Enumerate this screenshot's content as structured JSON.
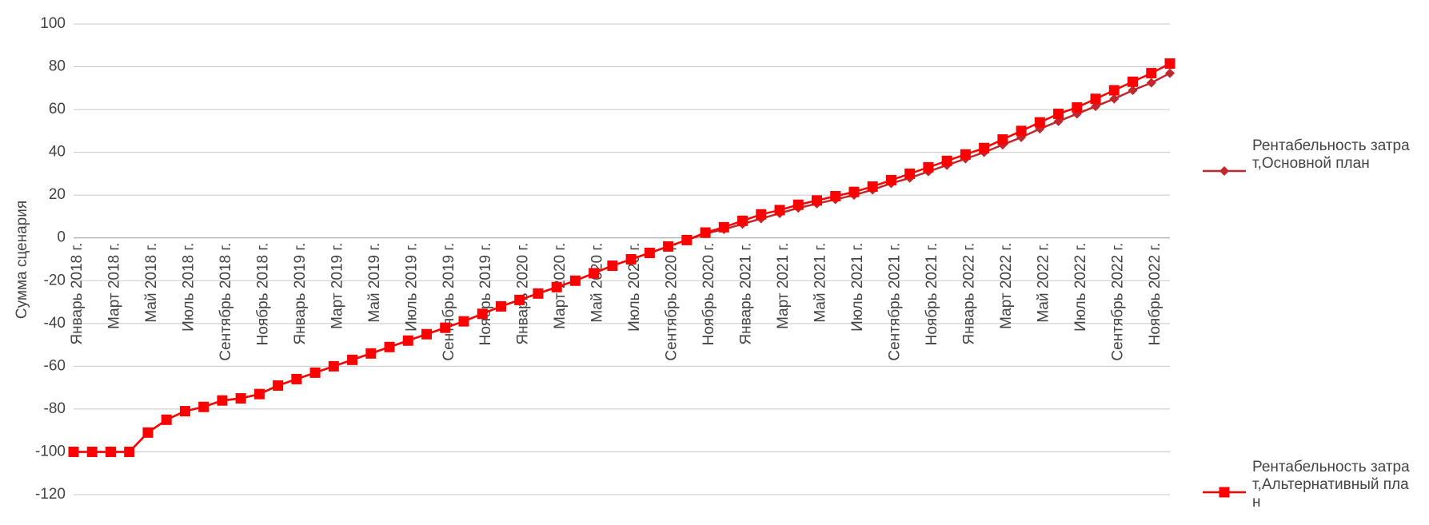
{
  "chart_data": {
    "type": "line",
    "y_label": "Сумма сценария",
    "categories": [
      "Январь 2018 г.",
      null,
      "Март 2018 г.",
      null,
      "Май 2018 г.",
      null,
      "Июль 2018 г.",
      null,
      "Сентябрь 2018 г.",
      null,
      "Ноябрь 2018 г.",
      null,
      "Январь 2019 г.",
      null,
      "Март 2019 г.",
      null,
      "Май 2019 г.",
      null,
      "Июль 2019 г.",
      null,
      "Сентябрь 2019 г.",
      null,
      "Ноябрь 2019 г.",
      null,
      "Январь 2020 г.",
      null,
      "Март 2020 г.",
      null,
      "Май 2020 г.",
      null,
      "Июль 2020 г.",
      null,
      "Сентябрь 2020 г.",
      null,
      "Ноябрь 2020 г.",
      null,
      "Январь 2021 г.",
      null,
      "Март 2021 г.",
      null,
      "Май 2021 г.",
      null,
      "Июль 2021 г.",
      null,
      "Сентябрь 2021 г.",
      null,
      "Ноябрь 2021 г.",
      null,
      "Январь 2022 г.",
      null,
      "Март 2022 г.",
      null,
      "Май 2022 г.",
      null,
      "Июль 2022 г.",
      null,
      "Сентябрь 2022 г.",
      null,
      "Ноябрь 2022 г.",
      null
    ],
    "series": [
      {
        "name": "Рентабельность затрат,Основной план",
        "color": "#c0282d",
        "marker": "diamond",
        "values": [
          -100,
          -100,
          -100,
          -100,
          -91,
          -85,
          -81,
          -79,
          -76,
          -75,
          -73,
          -69,
          -66,
          -63,
          -60,
          -57,
          -54,
          -51,
          -48,
          -45,
          -42,
          -39,
          -35.5,
          -32,
          -29,
          -26,
          -23,
          -20,
          -16.5,
          -13,
          -10,
          -7,
          -4,
          -1,
          2,
          4,
          6.5,
          9,
          11.5,
          14,
          16,
          18,
          20,
          22.5,
          25.5,
          28,
          31,
          34,
          37,
          40,
          43.5,
          47,
          51,
          54.5,
          58,
          61.5,
          65,
          69,
          72.5,
          77
        ]
      },
      {
        "name": "Рентабельность затрат,Альтернативный план",
        "color": "#ff0000",
        "marker": "square",
        "values": [
          -100,
          -100,
          -100,
          -100,
          -91,
          -85,
          -81,
          -79,
          -76,
          -75,
          -73,
          -69,
          -66,
          -63,
          -60,
          -57,
          -54,
          -51,
          -48,
          -45,
          -42,
          -39,
          -35.5,
          -32,
          -29,
          -26,
          -23,
          -20,
          -16.5,
          -13,
          -10,
          -7,
          -4,
          -1,
          2.5,
          5,
          8,
          11,
          13,
          15.5,
          17.5,
          19.5,
          21.5,
          24,
          27,
          30,
          33,
          36,
          39,
          42,
          46,
          50,
          54,
          58,
          61,
          65,
          69,
          73,
          77,
          81.5
        ]
      }
    ],
    "ylim": [
      -120,
      100
    ],
    "yticks": [
      -120,
      -100,
      -80,
      -60,
      -40,
      -20,
      0,
      20,
      40,
      60,
      80,
      100
    ],
    "grid": true,
    "legend": "right"
  }
}
